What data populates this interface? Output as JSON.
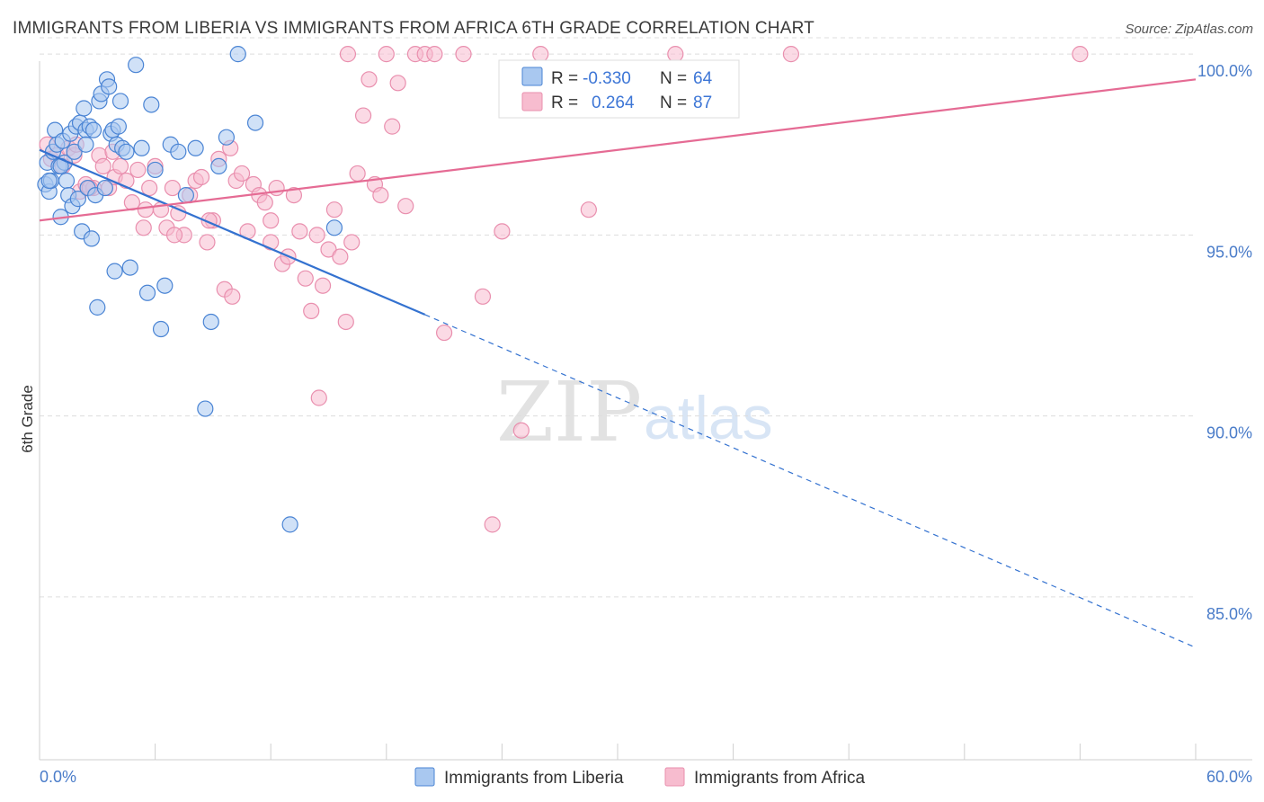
{
  "header": {
    "title": "IMMIGRANTS FROM LIBERIA VS IMMIGRANTS FROM AFRICA 6TH GRADE CORRELATION CHART",
    "source": "Source: ZipAtlas.com"
  },
  "watermark": {
    "zip": "ZIP",
    "atlas": "atlas"
  },
  "colors": {
    "blue_fill": "#a9c8f0",
    "blue_stroke": "#4a84d4",
    "blue_line": "#3472d0",
    "pink_fill": "#f7bccf",
    "pink_stroke": "#e98fae",
    "pink_line": "#e56b94",
    "tick_text": "#4a7cc9",
    "grid": "#dddddd"
  },
  "stats": {
    "r_label": "R =",
    "n_label": "N =",
    "rows": [
      {
        "r": "-0.330",
        "n": "64",
        "color": "blue"
      },
      {
        "r": "0.264",
        "n": "87",
        "color": "pink"
      }
    ]
  },
  "chart_data": {
    "type": "scatter",
    "title": "IMMIGRANTS FROM LIBERIA VS IMMIGRANTS FROM AFRICA 6TH GRADE CORRELATION CHART",
    "xlabel": "",
    "ylabel": "6th Grade",
    "xlim": [
      0,
      60
    ],
    "ylim": [
      80.5,
      100.5
    ],
    "x_tick_labels": [
      "0.0%",
      "60.0%"
    ],
    "y_ticks": [
      85,
      90,
      95,
      100
    ],
    "y_tick_labels": [
      "85.0%",
      "90.0%",
      "95.0%",
      "100.0%"
    ],
    "grid": true,
    "legend_position": "bottom",
    "series": [
      {
        "name": "Immigrants from Liberia",
        "color": "blue",
        "r": -0.33,
        "n": 64,
        "trend": {
          "x0": 0,
          "y0": 97.35,
          "x1": 20,
          "y1": 92.8,
          "dash_to_x": 60,
          "dash_to_y": 83.6
        },
        "points": [
          [
            0.3,
            96.4
          ],
          [
            0.4,
            97.0
          ],
          [
            0.5,
            96.2
          ],
          [
            0.6,
            96.5
          ],
          [
            0.7,
            97.3
          ],
          [
            0.8,
            97.9
          ],
          [
            0.9,
            97.5
          ],
          [
            1.0,
            96.9
          ],
          [
            1.1,
            95.5
          ],
          [
            1.2,
            97.6
          ],
          [
            1.3,
            97.0
          ],
          [
            1.4,
            96.5
          ],
          [
            1.5,
            96.1
          ],
          [
            1.6,
            97.8
          ],
          [
            1.7,
            95.8
          ],
          [
            1.8,
            97.3
          ],
          [
            1.9,
            98.0
          ],
          [
            2.0,
            96.0
          ],
          [
            2.1,
            98.1
          ],
          [
            2.2,
            95.1
          ],
          [
            2.3,
            98.5
          ],
          [
            2.4,
            97.9
          ],
          [
            2.5,
            96.3
          ],
          [
            2.6,
            98.0
          ],
          [
            2.7,
            94.9
          ],
          [
            2.8,
            97.9
          ],
          [
            2.9,
            96.1
          ],
          [
            3.0,
            93.0
          ],
          [
            3.1,
            98.7
          ],
          [
            3.2,
            98.9
          ],
          [
            3.4,
            96.3
          ],
          [
            3.5,
            99.3
          ],
          [
            3.6,
            99.1
          ],
          [
            3.7,
            97.8
          ],
          [
            3.8,
            97.9
          ],
          [
            3.9,
            94.0
          ],
          [
            4.0,
            97.5
          ],
          [
            4.1,
            98.0
          ],
          [
            4.2,
            98.7
          ],
          [
            4.3,
            97.4
          ],
          [
            4.5,
            97.3
          ],
          [
            4.7,
            94.1
          ],
          [
            5.0,
            99.7
          ],
          [
            5.3,
            97.4
          ],
          [
            5.6,
            93.4
          ],
          [
            5.8,
            98.6
          ],
          [
            6.0,
            96.8
          ],
          [
            6.3,
            92.4
          ],
          [
            6.5,
            93.6
          ],
          [
            6.8,
            97.5
          ],
          [
            7.2,
            97.3
          ],
          [
            7.6,
            96.1
          ],
          [
            8.1,
            97.4
          ],
          [
            8.6,
            90.2
          ],
          [
            8.9,
            92.6
          ],
          [
            9.3,
            96.9
          ],
          [
            9.7,
            97.7
          ],
          [
            10.3,
            100.0
          ],
          [
            11.2,
            98.1
          ],
          [
            13.0,
            87.0
          ],
          [
            15.3,
            95.2
          ],
          [
            1.1,
            96.9
          ],
          [
            2.4,
            97.5
          ],
          [
            0.5,
            96.5
          ]
        ]
      },
      {
        "name": "Immigrants from Africa",
        "color": "pink",
        "r": 0.264,
        "n": 87,
        "trend": {
          "x0": 0,
          "y0": 95.4,
          "x1": 60,
          "y1": 99.3
        },
        "points": [
          [
            0.4,
            97.5
          ],
          [
            0.6,
            97.1
          ],
          [
            0.9,
            97.2
          ],
          [
            1.2,
            96.9
          ],
          [
            1.5,
            97.4
          ],
          [
            1.8,
            97.2
          ],
          [
            2.1,
            96.2
          ],
          [
            2.4,
            96.4
          ],
          [
            2.8,
            96.3
          ],
          [
            3.1,
            97.2
          ],
          [
            3.3,
            96.9
          ],
          [
            3.6,
            96.3
          ],
          [
            3.9,
            96.6
          ],
          [
            4.2,
            96.9
          ],
          [
            4.5,
            96.5
          ],
          [
            4.8,
            95.9
          ],
          [
            5.1,
            96.8
          ],
          [
            5.4,
            95.2
          ],
          [
            5.7,
            96.3
          ],
          [
            6.0,
            96.9
          ],
          [
            6.3,
            95.7
          ],
          [
            6.6,
            95.2
          ],
          [
            6.9,
            96.3
          ],
          [
            7.2,
            95.6
          ],
          [
            7.5,
            95.0
          ],
          [
            7.8,
            96.1
          ],
          [
            8.1,
            96.5
          ],
          [
            8.4,
            96.6
          ],
          [
            8.7,
            94.8
          ],
          [
            9.0,
            95.4
          ],
          [
            9.3,
            97.1
          ],
          [
            9.6,
            93.5
          ],
          [
            9.9,
            97.4
          ],
          [
            10.2,
            96.5
          ],
          [
            10.5,
            96.7
          ],
          [
            10.8,
            95.1
          ],
          [
            11.1,
            96.4
          ],
          [
            11.4,
            96.1
          ],
          [
            11.7,
            95.9
          ],
          [
            12.0,
            95.4
          ],
          [
            12.3,
            96.3
          ],
          [
            12.6,
            94.2
          ],
          [
            12.9,
            94.4
          ],
          [
            13.2,
            96.1
          ],
          [
            13.5,
            95.1
          ],
          [
            13.8,
            93.8
          ],
          [
            14.1,
            92.9
          ],
          [
            14.4,
            95.0
          ],
          [
            14.7,
            93.6
          ],
          [
            15.0,
            94.6
          ],
          [
            15.3,
            95.7
          ],
          [
            15.6,
            94.4
          ],
          [
            15.9,
            92.6
          ],
          [
            16.2,
            94.8
          ],
          [
            16.5,
            96.7
          ],
          [
            16.8,
            98.3
          ],
          [
            17.1,
            99.3
          ],
          [
            17.4,
            96.4
          ],
          [
            17.7,
            96.1
          ],
          [
            18.0,
            100.0
          ],
          [
            18.3,
            98.0
          ],
          [
            18.6,
            99.2
          ],
          [
            19.0,
            95.8
          ],
          [
            19.5,
            100.0
          ],
          [
            20.0,
            100.0
          ],
          [
            21.0,
            92.3
          ],
          [
            22.0,
            100.0
          ],
          [
            23.0,
            93.3
          ],
          [
            23.5,
            87.0
          ],
          [
            24.0,
            95.1
          ],
          [
            25.0,
            89.6
          ],
          [
            26.0,
            100.0
          ],
          [
            28.5,
            95.7
          ],
          [
            33.0,
            100.0
          ],
          [
            39.0,
            100.0
          ],
          [
            54.0,
            100.0
          ],
          [
            14.5,
            90.5
          ],
          [
            10.0,
            93.3
          ],
          [
            7.0,
            95.0
          ],
          [
            5.5,
            95.7
          ],
          [
            3.8,
            97.3
          ],
          [
            2.6,
            96.3
          ],
          [
            1.9,
            97.5
          ],
          [
            8.8,
            95.4
          ],
          [
            12.0,
            94.8
          ],
          [
            16.0,
            100.0
          ],
          [
            20.5,
            100.0
          ]
        ]
      }
    ]
  }
}
